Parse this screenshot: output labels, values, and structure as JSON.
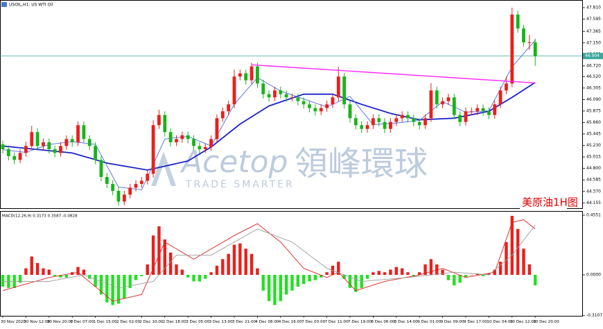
{
  "chart_data": [
    {
      "type": "candlestick",
      "title": "USOIL,H1: US WTI Oil",
      "annotation": "美原油1H图",
      "watermark": {
        "brand": "Acetop",
        "chinese": "領峰環球",
        "slogan": "TRADE SMARTER"
      },
      "categories": [
        "30 Nov 2020",
        null,
        null,
        null,
        "30 Nov 12:00",
        null,
        null,
        null,
        "30 Nov 20:00",
        null,
        null,
        null,
        "1 Dec 07:00",
        null,
        null,
        null,
        "1 Dec 15:00",
        null,
        null,
        null,
        "2 Dec 02:00",
        null,
        null,
        null,
        "2 Dec 10:00",
        null,
        null,
        null,
        "2 Dec 18:00",
        null,
        null,
        null,
        "3 Dec 05:00",
        null,
        null,
        null,
        "3 Dec 13:00",
        null,
        null,
        null,
        "3 Dec 21:00",
        null,
        null,
        null,
        "4 Dec 08:00",
        null,
        null,
        null,
        "4 Dec 16:00",
        null,
        null,
        null,
        "7 Dec 03:00",
        null,
        null,
        null,
        "7 Dec 11:00",
        null,
        null,
        null,
        "7 Dec 19:00",
        null,
        null,
        null,
        "8 Dec 06:00",
        null,
        null,
        null,
        "8 Dec 14:00",
        null,
        null,
        null,
        "9 Dec 01:00",
        null,
        null,
        null,
        "9 Dec 09:00",
        null,
        null,
        null,
        "9 Dec 17:00",
        null,
        null,
        null,
        "10 Dec 04:00",
        null,
        null,
        null,
        "10 Dec 12:00",
        null,
        null,
        null,
        "10 Dec 20:00"
      ],
      "open": [
        45.25,
        45.16,
        45.03,
        44.96,
        45.09,
        45.22,
        45.48,
        45.22,
        45.29,
        45.16,
        45.09,
        45.22,
        45.35,
        45.29,
        45.61,
        45.35,
        45.22,
        44.96,
        44.64,
        44.51,
        44.38,
        44.18,
        44.31,
        44.44,
        44.51,
        44.57,
        44.7,
        45.61,
        45.8,
        45.48,
        45.29,
        45.35,
        45.42,
        45.35,
        45.22,
        45.16,
        45.2,
        45.35,
        45.74,
        45.87,
        46.0,
        46.52,
        46.58,
        46.45,
        46.71,
        46.39,
        46.19,
        46.13,
        46.26,
        46.19,
        46.13,
        46.13,
        46.06,
        46.0,
        45.93,
        45.87,
        45.93,
        46.0,
        46.13,
        46.52,
        46.0,
        45.74,
        45.61,
        45.54,
        45.61,
        45.74,
        45.67,
        45.54,
        45.67,
        45.74,
        45.8,
        45.74,
        45.67,
        45.61,
        45.74,
        46.26,
        46.0,
        46.06,
        46.13,
        45.8,
        45.67,
        45.87,
        45.87,
        45.93,
        45.87,
        45.8,
        46.0,
        46.26,
        46.39,
        47.68,
        47.42,
        47.16,
        47.16
      ],
      "high": [
        45.32,
        45.23,
        45.1,
        45.16,
        45.3,
        45.6,
        45.55,
        45.36,
        45.36,
        45.23,
        45.29,
        45.42,
        45.42,
        45.68,
        45.68,
        45.42,
        45.29,
        45.03,
        44.71,
        44.58,
        44.45,
        44.38,
        44.51,
        44.58,
        44.64,
        44.77,
        45.7,
        45.9,
        45.87,
        45.55,
        45.42,
        45.49,
        45.49,
        45.42,
        45.29,
        45.27,
        45.42,
        45.81,
        45.94,
        46.07,
        46.65,
        46.65,
        46.65,
        46.78,
        46.78,
        46.46,
        46.26,
        46.33,
        46.33,
        46.26,
        46.2,
        46.2,
        46.13,
        46.07,
        46.0,
        46.0,
        46.07,
        46.2,
        46.7,
        46.59,
        46.07,
        45.81,
        45.68,
        45.68,
        45.81,
        45.81,
        45.74,
        45.74,
        45.81,
        45.87,
        45.87,
        45.81,
        45.74,
        45.81,
        46.4,
        46.33,
        46.13,
        46.2,
        46.2,
        45.87,
        45.94,
        45.94,
        46.0,
        46.0,
        45.94,
        46.07,
        46.33,
        46.52,
        47.81,
        47.75,
        47.49,
        47.3,
        47.23
      ],
      "low": [
        45.08,
        44.95,
        44.88,
        44.9,
        45.02,
        45.15,
        45.14,
        45.15,
        45.08,
        45.01,
        45.02,
        45.15,
        45.21,
        45.22,
        45.27,
        45.14,
        44.88,
        44.56,
        44.43,
        44.3,
        44.1,
        44.11,
        44.24,
        44.37,
        44.44,
        44.5,
        44.63,
        45.54,
        45.4,
        45.21,
        45.22,
        45.28,
        45.27,
        45.14,
        45.08,
        45.09,
        45.13,
        45.28,
        45.67,
        45.8,
        45.93,
        46.45,
        46.37,
        46.38,
        46.31,
        46.11,
        46.05,
        46.06,
        46.11,
        46.05,
        46.06,
        45.98,
        45.92,
        45.85,
        45.79,
        45.8,
        45.86,
        45.93,
        46.06,
        45.92,
        45.66,
        45.53,
        45.46,
        45.47,
        45.54,
        45.59,
        45.46,
        45.47,
        45.6,
        45.67,
        45.66,
        45.59,
        45.53,
        45.54,
        45.67,
        45.92,
        45.93,
        45.99,
        45.72,
        45.59,
        45.6,
        45.8,
        45.8,
        45.79,
        45.72,
        45.73,
        45.93,
        46.19,
        46.32,
        47.34,
        47.08,
        47.02,
        46.72
      ],
      "close": [
        45.16,
        45.03,
        44.96,
        45.09,
        45.22,
        45.48,
        45.22,
        45.29,
        45.16,
        45.09,
        45.22,
        45.35,
        45.29,
        45.61,
        45.35,
        45.22,
        44.96,
        44.64,
        44.51,
        44.38,
        44.18,
        44.31,
        44.44,
        44.51,
        44.57,
        44.7,
        45.61,
        45.8,
        45.48,
        45.29,
        45.35,
        45.42,
        45.35,
        45.22,
        45.16,
        45.2,
        45.35,
        45.74,
        45.87,
        46.0,
        46.52,
        46.58,
        46.45,
        46.71,
        46.39,
        46.19,
        46.13,
        46.26,
        46.19,
        46.13,
        46.13,
        46.06,
        46.0,
        45.93,
        45.87,
        45.93,
        46.0,
        46.13,
        46.52,
        46.0,
        45.74,
        45.61,
        45.54,
        45.61,
        45.74,
        45.67,
        45.54,
        45.67,
        45.74,
        45.8,
        45.74,
        45.67,
        45.61,
        45.74,
        46.26,
        46.0,
        46.06,
        46.13,
        45.8,
        45.67,
        45.87,
        45.87,
        45.93,
        45.87,
        45.8,
        46.0,
        46.26,
        46.39,
        47.68,
        47.42,
        47.16,
        47.16,
        46.9
      ],
      "up_color": "#e8201c",
      "down_color": "#18b418",
      "lines": [
        {
          "color": "#1a22c8",
          "x": [
            0,
            12,
            18,
            25,
            32,
            36,
            41,
            46,
            52,
            57,
            62,
            67,
            72,
            78,
            84,
            88,
            92
          ],
          "values": [
            45.22,
            45.09,
            44.9,
            44.77,
            44.94,
            45.2,
            45.63,
            45.97,
            46.19,
            46.19,
            46.0,
            45.83,
            45.71,
            45.74,
            45.87,
            46.13,
            46.41
          ]
        },
        {
          "color": "#4a6ae8",
          "x": [
            0,
            4,
            8,
            12,
            16,
            20,
            24,
            28,
            32,
            36,
            40,
            44,
            48,
            52,
            56,
            60,
            64,
            68,
            72,
            76,
            80,
            84,
            88,
            92
          ],
          "values": [
            45.15,
            45.1,
            45.25,
            45.3,
            45.25,
            44.45,
            44.4,
            45.35,
            45.4,
            45.22,
            46.0,
            46.5,
            46.25,
            46.1,
            45.95,
            46.15,
            45.62,
            45.65,
            45.7,
            46.05,
            45.85,
            45.88,
            46.7,
            47.2
          ]
        }
      ],
      "trendline": {
        "color": "#ff2aff",
        "x": [
          43,
          92
        ],
        "values": [
          46.74,
          46.4
        ]
      },
      "current_price": {
        "value": 46.904,
        "color": "#3aa89c"
      },
      "ylim": [
        44.055,
        47.94
      ],
      "yticks": [
        {
          "value": 47.81,
          "label": "47.810"
        },
        47.595,
        47.365,
        {
          "value": 47.15,
          "label": "47.150"
        },
        46.935,
        {
          "value": 46.72,
          "label": "46.720"
        },
        {
          "value": 46.52,
          "label": "46.520"
        },
        46.305,
        {
          "value": 46.09,
          "label": "46.090"
        },
        45.875,
        {
          "value": 45.66,
          "label": "45.660"
        },
        45.445,
        {
          "value": 45.23,
          "label": "45.230"
        },
        45.015,
        {
          "value": 44.8,
          "label": "44.800"
        },
        44.585,
        {
          "value": 44.37,
          "label": "44.370"
        },
        44.155
      ]
    },
    {
      "type": "macd",
      "title": "MACD(12,26,9) 0.3173 0.3587 -0.0828",
      "values": [
        -0.09,
        -0.1,
        -0.1,
        -0.06,
        0.05,
        0.14,
        0.09,
        0.05,
        0.04,
        -0.01,
        -0.02,
        -0.02,
        0.02,
        0.06,
        0.04,
        -0.03,
        -0.09,
        -0.15,
        -0.21,
        -0.23,
        -0.22,
        -0.18,
        -0.1,
        -0.04,
        -0.01,
        0.08,
        0.3,
        0.37,
        0.27,
        0.17,
        0.08,
        0.04,
        -0.02,
        -0.05,
        -0.05,
        -0.03,
        0.02,
        0.07,
        0.12,
        0.16,
        0.23,
        0.24,
        0.2,
        0.16,
        0.05,
        -0.12,
        -0.2,
        -0.23,
        -0.2,
        -0.15,
        -0.12,
        -0.09,
        -0.07,
        -0.05,
        -0.04,
        -0.02,
        0.02,
        0.07,
        0.1,
        -0.03,
        -0.1,
        -0.13,
        -0.1,
        -0.03,
        0.02,
        0.03,
        0.02,
        0.04,
        0.06,
        0.05,
        0.02,
        -0.01,
        0.02,
        0.08,
        0.12,
        0.08,
        0.04,
        -0.04,
        -0.08,
        -0.06,
        -0.02,
        0.0,
        0.01,
        -0.01,
        0.01,
        0.04,
        0.1,
        0.25,
        0.45,
        0.35,
        0.2,
        0.08,
        -0.08
      ],
      "pos_color": "#e8201c",
      "neg_color": "#22e022",
      "lines": [
        {
          "color": "#e02020",
          "x": [
            0,
            8,
            13,
            19,
            24,
            28,
            33,
            40,
            44,
            48,
            52,
            56,
            58,
            61,
            66,
            72,
            76,
            80,
            85,
            88,
            90,
            92
          ],
          "values": [
            -0.12,
            -0.02,
            0.02,
            -0.2,
            -0.15,
            0.25,
            0.12,
            0.3,
            0.39,
            0.25,
            0.05,
            -0.02,
            0.02,
            -0.12,
            -0.05,
            0.0,
            0.05,
            -0.02,
            0.02,
            0.4,
            0.42,
            0.35
          ]
        },
        {
          "color": "#9a9a9a",
          "x": [
            0,
            8,
            14,
            20,
            26,
            30,
            36,
            44,
            50,
            56,
            62,
            70,
            78,
            84,
            88,
            92
          ],
          "values": [
            -0.05,
            -0.05,
            0.0,
            -0.1,
            -0.05,
            0.15,
            0.15,
            0.35,
            0.25,
            0.05,
            -0.05,
            -0.02,
            0.02,
            0.0,
            0.15,
            0.38
          ]
        }
      ],
      "ylim": [
        -0.3122,
        0.4816
      ],
      "yticks": [
        0.4551,
        {
          "value": 0,
          "label": "0.0000"
        },
        -0.3107
      ]
    }
  ]
}
